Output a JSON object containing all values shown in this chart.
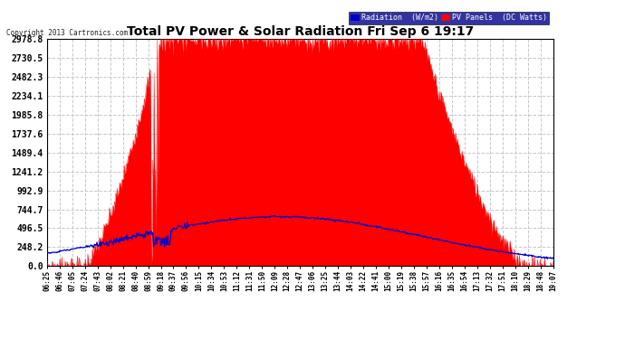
{
  "title": "Total PV Power & Solar Radiation Fri Sep 6 19:17",
  "copyright": "Copyright 2013 Cartronics.com",
  "yticks": [
    0.0,
    248.2,
    496.5,
    744.7,
    992.9,
    1241.2,
    1489.4,
    1737.6,
    1985.8,
    2234.1,
    2482.3,
    2730.5,
    2978.8
  ],
  "ymax": 2978.8,
  "plot_bg_color": "#ffffff",
  "pv_color": "#ff0000",
  "radiation_color": "#0000cc",
  "grid_color": "#c8c8c8",
  "title_color": "#000000",
  "legend_radiation_bg": "#0000cc",
  "legend_pv_bg": "#ff0000",
  "n_points": 780,
  "xtick_labels": [
    "06:25",
    "06:46",
    "07:05",
    "07:24",
    "07:43",
    "08:02",
    "08:21",
    "08:40",
    "08:59",
    "09:18",
    "09:37",
    "09:56",
    "10:15",
    "10:34",
    "10:53",
    "11:12",
    "11:31",
    "11:50",
    "12:09",
    "12:28",
    "12:47",
    "13:06",
    "13:25",
    "13:44",
    "14:03",
    "14:22",
    "14:41",
    "15:00",
    "15:19",
    "15:38",
    "15:57",
    "16:16",
    "16:35",
    "16:54",
    "17:13",
    "17:32",
    "17:51",
    "18:10",
    "18:29",
    "18:48",
    "19:07"
  ]
}
